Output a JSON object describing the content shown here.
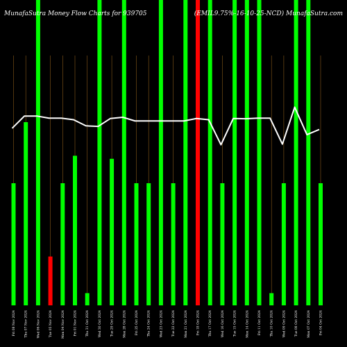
{
  "header": {
    "left_title": "MunafaSutra  Money Flow  Charts for 939705",
    "right_title": "(EMIL9.75%-16-10-25-NCD) MunafaSutra.com"
  },
  "chart_data": {
    "type": "bar",
    "title": "MunafaSutra  Money Flow  Charts for 939705",
    "subtitle": "(EMIL9.75%-16-10-25-NCD) MunafaSutra.com",
    "categories": [
      "Fri 08 Nov 2024",
      "Thu 07 Nov 2024",
      "Wed 06 Nov 2024",
      "Tue 05 Nov 2024",
      "Mon 04 Nov 2024",
      "Fri 01 Nov 2024",
      "Thu 31 Oct 2024",
      "Wed 30 Oct 2024",
      "Tue 29 Oct 2024",
      "Mon 28 Oct 2024",
      "Fri 25 Oct 2024",
      "Thu 24 Oct 2024",
      "Wed 23 Oct 2024",
      "Tue 22 Oct 2024",
      "Mon 21 Oct 2024",
      "Fri 18 Oct 2024",
      "Thu 17 Oct 2024",
      "Wed 16 Oct 2024",
      "Tue 15 Oct 2024",
      "Mon 14 Oct 2024",
      "Fri 11 Oct 2024",
      "Thu 10 Oct 2024",
      "Wed 09 Oct 2024",
      "Tue 08 Oct 2024",
      "Mon 07 Oct 2024",
      "Fri 04 Oct 2024"
    ],
    "series": [
      {
        "type": "bar",
        "values": [
          40,
          60,
          100,
          16,
          40,
          49,
          4,
          100,
          48,
          100,
          40,
          40,
          100,
          40,
          100,
          100,
          100,
          40,
          100,
          100,
          100,
          4,
          40,
          100,
          100,
          40
        ],
        "colors": [
          "green",
          "green",
          "green",
          "red",
          "green",
          "green",
          "green",
          "green",
          "green",
          "green",
          "green",
          "green",
          "green",
          "green",
          "green",
          "red",
          "green",
          "green",
          "green",
          "green",
          "green",
          "green",
          "green",
          "green",
          "green",
          "green"
        ]
      },
      {
        "type": "line",
        "values": [
          58,
          62,
          62,
          61.3,
          61.3,
          60.8,
          58.8,
          58.6,
          61.2,
          61.6,
          60.4,
          60.4,
          60.4,
          60.4,
          60.4,
          61.2,
          60.8,
          52.6,
          61.2,
          61.1,
          61.3,
          61.3,
          52.8,
          64.9,
          55.9,
          57.6
        ]
      }
    ],
    "ylim": [
      0,
      100
    ],
    "grid": true
  },
  "colors": {
    "background": "#000000",
    "green": "#00ff00",
    "red": "#ff0000",
    "line": "#ffffff",
    "grid": "#8a5a1a"
  }
}
